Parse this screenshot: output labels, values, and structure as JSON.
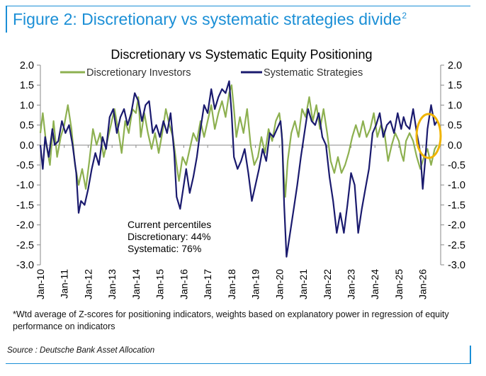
{
  "figure": {
    "title": "Figure 2: Discretionary vs systematic strategies divide",
    "title_sup": "2"
  },
  "annotation": {
    "lines": [
      "Current percentiles",
      "Discretionary: 44%",
      "Systematic: 76%"
    ]
  },
  "footnote": "*Wtd average of Z-scores for positioning indicators, weights based on explanatory power in regression of equity performance on indicators",
  "source": "Source : Deutsche Bank Asset Allocation",
  "colors": {
    "title_blue": "#1b8fd6",
    "discretionary": "#8db050",
    "systematic": "#1a1a6e",
    "highlight": "#f0b400"
  },
  "chart_data": {
    "type": "line",
    "title": "Discretionary  vs Systematic Equity Positioning",
    "xlabel": "",
    "ylabel": "",
    "ylim": [
      -3.0,
      2.0
    ],
    "y_ticks": [
      "2.0",
      "1.5",
      "1.0",
      "0.5",
      "0.0",
      "-0.5",
      "-1.0",
      "-1.5",
      "-2.0",
      "-2.5",
      "-3.0"
    ],
    "y2_ticks": [
      "2.0",
      "1.5",
      "1.0",
      "0.5",
      "0.0",
      "-0.5",
      "-1.0",
      "-1.5",
      "-2.0",
      "-2.5",
      "-3.0"
    ],
    "x_ticks": [
      "Jan-10",
      "Jan-11",
      "Jan-12",
      "Jan-13",
      "Jan-14",
      "Jan-15",
      "Jan-16",
      "Jan-17",
      "Jan-18",
      "Jan-19",
      "Jan-20",
      "Jan-21",
      "Jan-22",
      "Jan-23",
      "Jan-24",
      "Jan-25",
      "Jan-26"
    ],
    "legend_position": "top",
    "grid": false,
    "highlight": {
      "label": "current values circled",
      "x": 2026.55
    },
    "series": [
      {
        "name": "Discretionary Investors",
        "color": "#8db050",
        "x": [
          2010.0,
          2010.1,
          2010.25,
          2010.4,
          2010.55,
          2010.7,
          2010.85,
          2011.0,
          2011.15,
          2011.3,
          2011.45,
          2011.6,
          2011.75,
          2011.9,
          2012.05,
          2012.2,
          2012.35,
          2012.5,
          2012.65,
          2012.8,
          2012.95,
          2013.1,
          2013.25,
          2013.4,
          2013.55,
          2013.7,
          2013.85,
          2014.0,
          2014.1,
          2014.2,
          2014.35,
          2014.5,
          2014.65,
          2014.8,
          2014.95,
          2015.1,
          2015.25,
          2015.4,
          2015.55,
          2015.7,
          2015.8,
          2015.95,
          2016.1,
          2016.25,
          2016.4,
          2016.55,
          2016.7,
          2016.85,
          2017.0,
          2017.15,
          2017.3,
          2017.45,
          2017.6,
          2017.75,
          2017.9,
          2018.0,
          2018.1,
          2018.2,
          2018.35,
          2018.5,
          2018.65,
          2018.8,
          2018.95,
          2019.1,
          2019.25,
          2019.4,
          2019.55,
          2019.7,
          2019.85,
          2020.0,
          2020.1,
          2020.17,
          2020.25,
          2020.35,
          2020.5,
          2020.65,
          2020.8,
          2020.95,
          2021.1,
          2021.25,
          2021.4,
          2021.55,
          2021.7,
          2021.85,
          2022.0,
          2022.15,
          2022.3,
          2022.45,
          2022.6,
          2022.75,
          2022.9,
          2023.05,
          2023.2,
          2023.35,
          2023.5,
          2023.65,
          2023.8,
          2023.95,
          2024.1,
          2024.25,
          2024.4,
          2024.55,
          2024.7,
          2024.85,
          2025.0,
          2025.1,
          2025.2,
          2025.3,
          2025.45,
          2025.6,
          2025.75,
          2025.9,
          2026.05,
          2026.2,
          2026.35,
          2026.5,
          2026.6
        ],
        "values": [
          0.3,
          0.8,
          0.0,
          -0.5,
          0.6,
          -0.3,
          0.2,
          0.5,
          1.0,
          0.4,
          -0.5,
          -1.0,
          -0.6,
          -1.1,
          -0.4,
          0.4,
          0.0,
          0.3,
          -0.3,
          0.1,
          0.5,
          0.9,
          0.4,
          -0.2,
          0.6,
          0.3,
          0.9,
          0.8,
          1.2,
          0.2,
          0.8,
          0.3,
          -0.1,
          0.3,
          -0.2,
          0.3,
          0.9,
          0.5,
          0.2,
          -0.5,
          -0.9,
          -0.3,
          -0.5,
          -0.1,
          0.3,
          0.1,
          0.6,
          0.2,
          0.6,
          1.0,
          0.4,
          0.8,
          1.1,
          0.7,
          1.3,
          1.5,
          0.9,
          0.2,
          0.7,
          0.3,
          0.9,
          0.0,
          -0.5,
          -0.3,
          0.2,
          -0.2,
          0.4,
          0.1,
          0.6,
          0.8,
          0.3,
          -0.6,
          -1.3,
          -0.4,
          0.3,
          0.6,
          0.2,
          0.9,
          0.7,
          1.2,
          0.6,
          1.0,
          0.4,
          0.9,
          0.3,
          -0.4,
          -0.7,
          -0.3,
          -0.7,
          -0.5,
          -0.2,
          0.2,
          0.5,
          0.2,
          0.6,
          0.2,
          0.4,
          0.8,
          0.2,
          0.5,
          0.3,
          -0.4,
          0.0,
          0.3,
          0.1,
          -0.2,
          -0.4,
          0.1,
          0.3,
          0.1,
          -0.3,
          -0.6,
          -0.3,
          -0.1,
          -0.5,
          -0.1,
          0.0
        ]
      },
      {
        "name": "Systematic Strategies",
        "color": "#1a1a6e",
        "x": [
          2010.0,
          2010.1,
          2010.2,
          2010.35,
          2010.5,
          2010.6,
          2010.75,
          2010.9,
          2011.05,
          2011.2,
          2011.35,
          2011.5,
          2011.6,
          2011.7,
          2011.85,
          2012.0,
          2012.15,
          2012.3,
          2012.45,
          2012.6,
          2012.75,
          2012.9,
          2013.05,
          2013.2,
          2013.35,
          2013.5,
          2013.65,
          2013.8,
          2013.95,
          2014.1,
          2014.25,
          2014.4,
          2014.55,
          2014.7,
          2014.85,
          2015.0,
          2015.15,
          2015.3,
          2015.45,
          2015.6,
          2015.7,
          2015.85,
          2016.0,
          2016.1,
          2016.25,
          2016.4,
          2016.55,
          2016.7,
          2016.85,
          2017.0,
          2017.15,
          2017.3,
          2017.45,
          2017.6,
          2017.75,
          2017.9,
          2018.0,
          2018.1,
          2018.25,
          2018.4,
          2018.55,
          2018.7,
          2018.85,
          2019.0,
          2019.15,
          2019.3,
          2019.45,
          2019.6,
          2019.75,
          2019.9,
          2020.05,
          2020.12,
          2020.2,
          2020.3,
          2020.45,
          2020.6,
          2020.75,
          2020.9,
          2021.05,
          2021.2,
          2021.35,
          2021.5,
          2021.65,
          2021.8,
          2021.95,
          2022.1,
          2022.25,
          2022.4,
          2022.55,
          2022.7,
          2022.85,
          2023.0,
          2023.15,
          2023.3,
          2023.45,
          2023.6,
          2023.75,
          2023.9,
          2024.05,
          2024.2,
          2024.35,
          2024.5,
          2024.65,
          2024.8,
          2024.95,
          2025.1,
          2025.2,
          2025.3,
          2025.45,
          2025.6,
          2025.75,
          2025.9,
          2026.0,
          2026.1,
          2026.2,
          2026.35,
          2026.5,
          2026.6
        ],
        "values": [
          0.0,
          -0.6,
          0.2,
          -0.3,
          0.4,
          0.0,
          0.1,
          0.6,
          0.3,
          0.5,
          0.0,
          -0.7,
          -1.7,
          -1.4,
          -1.5,
          -1.1,
          -0.6,
          -0.2,
          -0.5,
          0.2,
          -0.1,
          0.7,
          0.9,
          0.3,
          0.7,
          0.9,
          0.5,
          0.8,
          1.3,
          1.1,
          0.6,
          1.0,
          1.1,
          0.3,
          0.5,
          0.2,
          0.6,
          0.3,
          0.8,
          -0.2,
          -1.3,
          -1.6,
          -1.0,
          -0.6,
          -1.2,
          -0.8,
          -0.3,
          0.4,
          1.0,
          0.8,
          1.4,
          0.9,
          1.2,
          1.4,
          1.3,
          1.6,
          0.8,
          -0.3,
          -0.6,
          -0.4,
          -0.1,
          -0.7,
          -1.4,
          -1.0,
          -0.6,
          -0.1,
          -0.4,
          0.3,
          0.2,
          0.4,
          0.6,
          0.1,
          -1.5,
          -2.8,
          -2.2,
          -1.6,
          -1.0,
          -0.3,
          0.3,
          0.9,
          0.6,
          0.5,
          0.8,
          0.2,
          0.0,
          -0.8,
          -1.4,
          -2.2,
          -1.7,
          -2.2,
          -1.5,
          -0.7,
          -1.0,
          -2.2,
          -1.6,
          -1.1,
          -0.6,
          0.3,
          0.5,
          0.8,
          0.2,
          0.5,
          0.6,
          0.3,
          0.8,
          0.4,
          0.7,
          0.5,
          0.4,
          0.9,
          0.3,
          -0.2,
          -1.1,
          -0.4,
          0.4,
          1.0,
          0.5,
          0.6
        ]
      }
    ]
  }
}
